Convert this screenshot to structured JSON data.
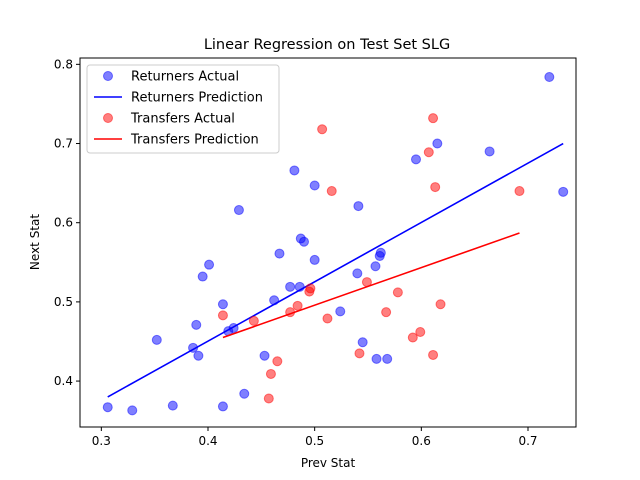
{
  "chart_data": {
    "type": "scatter",
    "title": "Linear Regression on Test Set SLG",
    "xlabel": "Prev Stat",
    "ylabel": "Next Stat",
    "xlim": [
      0.28,
      0.745
    ],
    "ylim": [
      0.342,
      0.808
    ],
    "xticks": [
      "0.3",
      "0.4",
      "0.5",
      "0.6",
      "0.7"
    ],
    "yticks": [
      "0.4",
      "0.5",
      "0.6",
      "0.7",
      "0.8"
    ],
    "grid": false,
    "legend_position": "top-left",
    "series": [
      {
        "name": "Returners Actual",
        "kind": "scatter",
        "color": "#0000ff",
        "points": [
          [
            0.306,
            0.367
          ],
          [
            0.329,
            0.363
          ],
          [
            0.367,
            0.369
          ],
          [
            0.352,
            0.452
          ],
          [
            0.386,
            0.442
          ],
          [
            0.389,
            0.471
          ],
          [
            0.391,
            0.432
          ],
          [
            0.395,
            0.532
          ],
          [
            0.401,
            0.547
          ],
          [
            0.414,
            0.497
          ],
          [
            0.414,
            0.368
          ],
          [
            0.419,
            0.463
          ],
          [
            0.424,
            0.467
          ],
          [
            0.429,
            0.616
          ],
          [
            0.434,
            0.384
          ],
          [
            0.453,
            0.432
          ],
          [
            0.462,
            0.502
          ],
          [
            0.467,
            0.561
          ],
          [
            0.477,
            0.519
          ],
          [
            0.481,
            0.666
          ],
          [
            0.486,
            0.519
          ],
          [
            0.487,
            0.58
          ],
          [
            0.49,
            0.576
          ],
          [
            0.5,
            0.553
          ],
          [
            0.5,
            0.647
          ],
          [
            0.524,
            0.488
          ],
          [
            0.54,
            0.536
          ],
          [
            0.541,
            0.621
          ],
          [
            0.545,
            0.449
          ],
          [
            0.557,
            0.545
          ],
          [
            0.558,
            0.428
          ],
          [
            0.561,
            0.558
          ],
          [
            0.562,
            0.562
          ],
          [
            0.568,
            0.428
          ],
          [
            0.595,
            0.68
          ],
          [
            0.615,
            0.7
          ],
          [
            0.664,
            0.69
          ],
          [
            0.72,
            0.784
          ],
          [
            0.733,
            0.639
          ]
        ]
      },
      {
        "name": "Returners Prediction",
        "kind": "line",
        "color": "#0000ff",
        "points": [
          [
            0.306,
            0.38
          ],
          [
            0.733,
            0.7
          ]
        ]
      },
      {
        "name": "Transfers Actual",
        "kind": "scatter",
        "color": "#ff0000",
        "points": [
          [
            0.414,
            0.483
          ],
          [
            0.443,
            0.476
          ],
          [
            0.457,
            0.378
          ],
          [
            0.459,
            0.409
          ],
          [
            0.465,
            0.425
          ],
          [
            0.477,
            0.487
          ],
          [
            0.484,
            0.495
          ],
          [
            0.495,
            0.513
          ],
          [
            0.496,
            0.517
          ],
          [
            0.507,
            0.718
          ],
          [
            0.512,
            0.479
          ],
          [
            0.516,
            0.64
          ],
          [
            0.542,
            0.435
          ],
          [
            0.549,
            0.525
          ],
          [
            0.567,
            0.487
          ],
          [
            0.578,
            0.512
          ],
          [
            0.592,
            0.455
          ],
          [
            0.599,
            0.462
          ],
          [
            0.607,
            0.689
          ],
          [
            0.611,
            0.732
          ],
          [
            0.611,
            0.433
          ],
          [
            0.613,
            0.645
          ],
          [
            0.618,
            0.497
          ],
          [
            0.692,
            0.64
          ]
        ]
      },
      {
        "name": "Transfers Prediction",
        "kind": "line",
        "color": "#ff0000",
        "points": [
          [
            0.414,
            0.455
          ],
          [
            0.692,
            0.587
          ]
        ]
      }
    ]
  }
}
